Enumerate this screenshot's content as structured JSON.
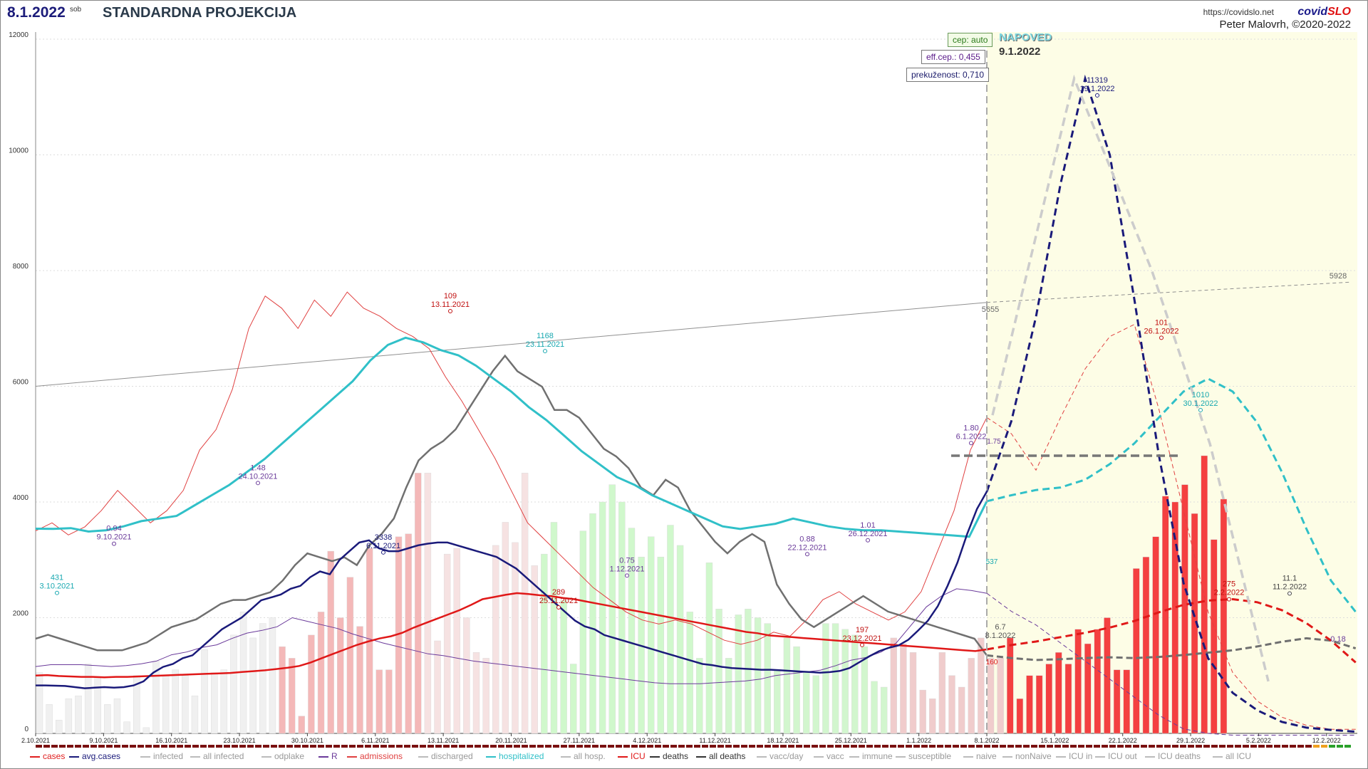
{
  "header": {
    "date": "8.1.2022",
    "day": "sob",
    "title": "STANDARDNA PROJEKCIJA",
    "url": "https://covidslo.net",
    "brand_a": "covid",
    "brand_b": "SLO",
    "author": "Peter Malovrh, ©2020-2022"
  },
  "params": {
    "cep": "cep: auto",
    "eff": "eff.cep.: 0,455",
    "prek": "prekuženost: 0,710"
  },
  "forecast": {
    "label": "NAPOVED",
    "date": "9.1.2022"
  },
  "colors": {
    "avg": "#1a1a7a",
    "R": "#6a3a9a",
    "adm": "#e04040",
    "hosp": "#30c0c8",
    "icu": "#e01818",
    "deaths": "#707070",
    "cumul": "#909090",
    "forecast_bg": "#fdfde6"
  },
  "chart_data": {
    "type": "bar+line",
    "ylim": [
      0,
      12000
    ],
    "yticks": [
      "0",
      "2000",
      "4000",
      "6000",
      "8000",
      "10000",
      "12000"
    ],
    "x_start": "2.10.2021",
    "x_ticks": [
      "2.10.2021",
      "9.10.2021",
      "16.10.2021",
      "23.10.2021",
      "30.10.2021",
      "6.11.2021",
      "13.11.2021",
      "20.11.2021",
      "27.11.2021",
      "4.12.2021",
      "11.12.2021",
      "18.12.2021",
      "25.12.2021",
      "1.1.2022",
      "8.1.2022",
      "15.1.2022",
      "22.1.2022",
      "29.1.2022",
      "5.2.2022",
      "12.2.2022"
    ],
    "cases": [
      1050,
      500,
      230,
      600,
      650,
      1200,
      980,
      500,
      600,
      200,
      1000,
      100,
      1250,
      1000,
      1100,
      1000,
      650,
      1450,
      1050,
      1100,
      1700,
      2100,
      1650,
      1900,
      2000,
      1500,
      1300,
      300,
      1700,
      2100,
      3150,
      2000,
      2700,
      1850,
      3200,
      1100,
      1100,
      3400,
      3450,
      4500,
      4500,
      1600,
      3100,
      3200,
      2000,
      1400,
      1300,
      3250,
      3650,
      3300,
      4500,
      2900,
      3100,
      3650,
      2300,
      1200,
      3500,
      3800,
      4000,
      4300,
      4000,
      3550,
      3050,
      3400,
      3050,
      3600,
      3250,
      2100,
      1300,
      2950,
      2150,
      1300,
      2050,
      2150,
      2000,
      1900,
      1100,
      1650,
      1500,
      1050,
      1000,
      1900,
      1900,
      1800,
      1700,
      1500,
      900,
      800,
      1650,
      1550,
      1400,
      750,
      600,
      1400,
      1000,
      800,
      1300,
      1650,
      1300,
      1300,
      1650,
      600,
      1000,
      1000,
      1200,
      1400,
      1200,
      1800,
      1550,
      1800,
      2000,
      1100,
      1100,
      2850,
      3050,
      3400,
      4100,
      4000,
      4300,
      3800,
      4800,
      3350,
      4050
    ],
    "series": [
      {
        "name": "avg.cases",
        "values": [
          830,
          830,
          825,
          820,
          800,
          780,
          790,
          800,
          790,
          800,
          830,
          900,
          1050,
          1150,
          1200,
          1300,
          1350,
          1500,
          1650,
          1800,
          1900,
          2000,
          2150,
          2300,
          2350,
          2400,
          2500,
          2550,
          2700,
          2800,
          2750,
          3000,
          3150,
          3300,
          3338,
          3200,
          3150,
          3150,
          3200,
          3250,
          3280,
          3300,
          3300,
          3250,
          3200,
          3150,
          3100,
          3050,
          2950,
          2850,
          2700,
          2550,
          2400,
          2250,
          2100,
          1950,
          1850,
          1800,
          1700,
          1650,
          1600,
          1550,
          1500,
          1450,
          1400,
          1350,
          1300,
          1250,
          1200,
          1180,
          1150,
          1130,
          1120,
          1110,
          1100,
          1100,
          1090,
          1080,
          1070,
          1060,
          1050,
          1060,
          1080,
          1130,
          1230,
          1330,
          1420,
          1480,
          1520,
          1620,
          1780,
          1950,
          2200,
          2550,
          2950,
          3450,
          3880,
          4180
        ]
      },
      {
        "name": "R",
        "values": [
          0.94,
          0.96,
          0.96,
          0.96,
          0.95,
          0.94,
          0.95,
          0.97,
          1.0,
          1.07,
          1.1,
          1.15,
          1.18,
          1.25,
          1.31,
          1.34,
          1.38,
          1.48,
          1.44,
          1.4,
          1.36,
          1.3,
          1.25,
          1.2,
          1.16,
          1.12,
          1.08,
          1.06,
          1.03,
          1.0,
          0.98,
          0.96,
          0.94,
          0.92,
          0.9,
          0.88,
          0.86,
          0.84,
          0.82,
          0.8,
          0.78,
          0.76,
          0.75,
          0.75,
          0.75,
          0.76,
          0.77,
          0.78,
          0.8,
          0.84,
          0.86,
          0.88,
          0.9,
          0.95,
          1.01,
          1.04,
          1.1,
          1.2,
          1.4,
          1.6,
          1.72,
          1.8,
          1.78,
          1.75
        ]
      },
      {
        "name": "admissions",
        "values": [
          50,
          52,
          49,
          51,
          55,
          60,
          56,
          52,
          55,
          60,
          70,
          75,
          85,
          100,
          108,
          105,
          100,
          107,
          103,
          109,
          105,
          103,
          100,
          98,
          95,
          88,
          82,
          75,
          68,
          60,
          52,
          48,
          44,
          40,
          36,
          33,
          30,
          28,
          27,
          28,
          27,
          25,
          23,
          22,
          23,
          25,
          24,
          28,
          33,
          35,
          32,
          30,
          28,
          30,
          35,
          45,
          55,
          70,
          78
        ]
      },
      {
        "name": "hospitalized",
        "values": [
          431,
          430,
          433,
          420,
          425,
          440,
          460,
          470,
          480,
          520,
          560,
          600,
          650,
          700,
          760,
          820,
          880,
          940,
          1000,
          1080,
          1140,
          1168,
          1150,
          1120,
          1100,
          1060,
          1010,
          960,
          900,
          850,
          790,
          730,
          680,
          630,
          600,
          560,
          530,
          500,
          470,
          440,
          430,
          440,
          450,
          470,
          455,
          440,
          430,
          425,
          425,
          420,
          415,
          410,
          405,
          400,
          537
        ]
      },
      {
        "name": "ICU",
        "values": [
          100,
          101,
          99,
          98,
          97,
          97,
          96,
          97,
          97,
          98,
          99,
          100,
          101,
          102,
          103,
          104,
          105,
          106,
          108,
          110,
          112,
          115,
          118,
          122,
          130,
          140,
          150,
          160,
          170,
          178,
          185,
          190,
          198,
          210,
          220,
          230,
          240,
          250,
          262,
          275,
          280,
          285,
          289,
          287,
          284,
          282,
          278,
          275,
          270,
          265,
          260,
          255,
          250,
          245,
          240,
          235,
          230,
          225,
          220,
          215,
          210,
          205,
          200,
          197,
          192,
          190,
          188,
          186,
          184,
          182,
          180,
          178,
          176,
          174,
          172,
          170,
          168,
          166,
          164,
          162,
          160,
          158,
          156,
          160
        ]
      },
      {
        "name": "deaths",
        "values": [
          11,
          12,
          11,
          10,
          9,
          8,
          8,
          8,
          9,
          10,
          12,
          14,
          15,
          16,
          18,
          20,
          21,
          21,
          22,
          23,
          26,
          30,
          33,
          32,
          31,
          32,
          30,
          35,
          38,
          42,
          50,
          57,
          60,
          62,
          65,
          70,
          75,
          80,
          84,
          80,
          78,
          76,
          70,
          70,
          68,
          64,
          60,
          58,
          55,
          50,
          48,
          52,
          50,
          44,
          40,
          36,
          33,
          36,
          38,
          36,
          25,
          20,
          16,
          14,
          16,
          18,
          20,
          22,
          20,
          18,
          17,
          16,
          15,
          14,
          13,
          12,
          11,
          6.7
        ]
      }
    ],
    "forecast_series": [
      {
        "name": "avg.cases",
        "values": [
          4180,
          5400,
          7200,
          9500,
          11319,
          10000,
          7500,
          4800,
          2600,
          1300,
          700,
          400,
          200,
          100,
          60,
          30
        ]
      },
      {
        "name": "hospitalized",
        "values": [
          537,
          560,
          580,
          590,
          620,
          680,
          760,
          860,
          960,
          1010,
          960,
          840,
          650,
          430,
          230,
          110
        ]
      },
      {
        "name": "ICU",
        "values": [
          160,
          170,
          178,
          188,
          198,
          210,
          225,
          245,
          262,
          272,
          275,
          268,
          250,
          220,
          180,
          130
        ]
      },
      {
        "name": "deaths",
        "values": [
          6.7,
          6,
          5.5,
          5.7,
          6,
          6.2,
          6,
          6.3,
          6.8,
          7.4,
          8,
          9,
          10.2,
          11.1,
          10.5,
          8.5
        ]
      },
      {
        "name": "admissions",
        "values": [
          78,
          74,
          65,
          78,
          90,
          98,
          101,
          80,
          55,
          30,
          15,
          8,
          4,
          2,
          1,
          1
        ]
      },
      {
        "name": "R",
        "values": [
          1.75,
          1.55,
          1.4,
          1.2,
          1.0,
          0.8,
          0.6,
          0.4,
          0.25,
          0.2,
          0.18,
          0.18,
          0.18,
          0.18,
          0.18,
          0.18
        ]
      }
    ],
    "cumulative_line": {
      "name": "all deaths",
      "start": 6000,
      "end_actual": 7450,
      "end_forecast": 7800
    },
    "annotations": [
      {
        "series": "hospitalized",
        "label": "431",
        "date": "3.10.2021"
      },
      {
        "series": "R",
        "label": "0.94",
        "date": "9.10.2021"
      },
      {
        "series": "R",
        "label": "1.48",
        "date": "24.10.2021"
      },
      {
        "series": "avg.cases",
        "label": "3338",
        "date": "6.11.2021"
      },
      {
        "series": "admissions",
        "label": "109",
        "date": "13.11.2021"
      },
      {
        "series": "hospitalized",
        "label": "1168",
        "date": "23.11.2021"
      },
      {
        "series": "ICU",
        "label": "289",
        "date": "25.11.2021"
      },
      {
        "series": "R",
        "label": "0.75",
        "date": "1.12.2021"
      },
      {
        "series": "R",
        "label": "0.88",
        "date": "22.12.2021"
      },
      {
        "series": "R",
        "label": "1.01",
        "date": "26.12.2021"
      },
      {
        "series": "ICU",
        "label": "197",
        "date": "23.12.2021"
      },
      {
        "series": "R",
        "label": "1.80",
        "date": "6.1.2022"
      },
      {
        "series": "avg.cases",
        "label": "11319",
        "date": "19.1.2022"
      },
      {
        "series": "admissions",
        "label": "101",
        "date": "26.1.2022"
      },
      {
        "series": "hospitalized",
        "label": "1010",
        "date": "30.1.2022"
      },
      {
        "series": "ICU",
        "label": "275",
        "date": "2.2.2022"
      },
      {
        "series": "deaths",
        "label": "11.1",
        "date": "11.2.2022"
      }
    ],
    "end_labels": {
      "R": "1.75",
      "hospitalized": "537",
      "ICU": "160",
      "deaths": "6.7",
      "deaths_date": "8.1.2022",
      "cumul_end": "5655",
      "cumul_forecast_end": "5928",
      "R_forecast_end": "0.18"
    },
    "legend": [
      {
        "label": "cases",
        "color": "#e02020"
      },
      {
        "label": "avg.cases",
        "color": "#1a1a7a"
      },
      {
        "label": "infected",
        "color": "#bbbbbb"
      },
      {
        "label": "all infected",
        "color": "#bbbbbb"
      },
      {
        "label": "odplake",
        "color": "#bbbbbb"
      },
      {
        "label": "R",
        "color": "#6a3a9a"
      },
      {
        "label": "admissions",
        "color": "#e04040"
      },
      {
        "label": "discharged",
        "color": "#bbbbbb"
      },
      {
        "label": "hospitalized",
        "color": "#30c0c8"
      },
      {
        "label": "all hosp.",
        "color": "#bbbbbb"
      },
      {
        "label": "ICU",
        "color": "#e01818"
      },
      {
        "label": "deaths",
        "color": "#333333"
      },
      {
        "label": "all deaths",
        "color": "#333333"
      },
      {
        "label": "vacc/day",
        "color": "#bbbbbb"
      },
      {
        "label": "vacc",
        "color": "#bbbbbb"
      },
      {
        "label": "immune",
        "color": "#bbbbbb"
      },
      {
        "label": "susceptible",
        "color": "#bbbbbb"
      },
      {
        "label": "naive",
        "color": "#bbbbbb"
      },
      {
        "label": "nonNaive",
        "color": "#bbbbbb"
      },
      {
        "label": "ICU in",
        "color": "#bbbbbb"
      },
      {
        "label": "ICU out",
        "color": "#bbbbbb"
      },
      {
        "label": "ICU deaths",
        "color": "#bbbbbb"
      },
      {
        "label": "all ICU",
        "color": "#bbbbbb"
      }
    ]
  }
}
